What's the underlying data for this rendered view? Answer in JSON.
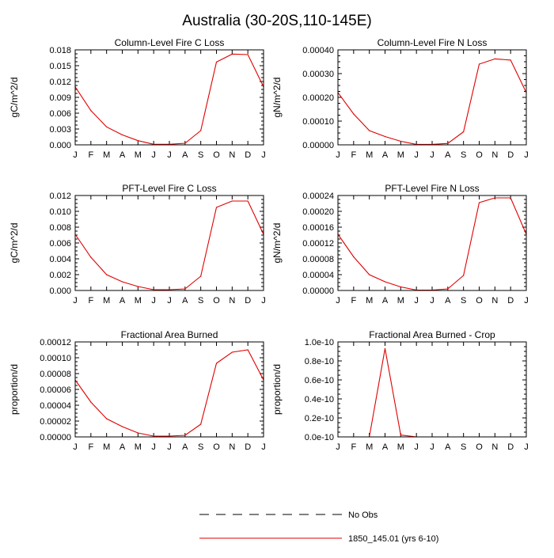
{
  "figure_title": "Australia (30-20S,110-145E)",
  "months": [
    "J",
    "F",
    "M",
    "A",
    "M",
    "J",
    "J",
    "A",
    "S",
    "O",
    "N",
    "D",
    "J"
  ],
  "legend": [
    {
      "label": "No Obs",
      "color": "#000000",
      "dashed": true
    },
    {
      "label": "1850_145.01 (yrs 6-10)",
      "color": "#e00000",
      "dashed": false
    }
  ],
  "chart_data": [
    {
      "type": "line",
      "title": "Column-Level Fire C Loss",
      "ylabel": "gC/m^2/d",
      "ylim": [
        0,
        0.018
      ],
      "yticks": [
        "0.000",
        "0.003",
        "0.006",
        "0.009",
        "0.012",
        "0.015",
        "0.018"
      ],
      "series": [
        {
          "name": "1850_145.01 (yrs 6-10)",
          "color": "#e00000",
          "values": [
            0.011,
            0.0065,
            0.0034,
            0.0019,
            0.0008,
            0.0001,
            0.0001,
            0.0003,
            0.0027,
            0.0157,
            0.0172,
            0.0171,
            0.011
          ]
        }
      ]
    },
    {
      "type": "line",
      "title": "Column-Level Fire N Loss",
      "ylabel": "gN/m^2/d",
      "ylim": [
        0,
        0.0004
      ],
      "yticks": [
        "0.00000",
        "0.00010",
        "0.00020",
        "0.00030",
        "0.00040"
      ],
      "series": [
        {
          "name": "1850_145.01 (yrs 6-10)",
          "color": "#e00000",
          "values": [
            0.00022,
            0.00013,
            6e-05,
            3.5e-05,
            1.5e-05,
            2e-06,
            2e-06,
            6e-06,
            5.5e-05,
            0.00034,
            0.000362,
            0.000357,
            0.00022
          ]
        }
      ]
    },
    {
      "type": "line",
      "title": "PFT-Level Fire C Loss",
      "ylabel": "gC/m^2/d",
      "ylim": [
        0,
        0.012
      ],
      "yticks": [
        "0.000",
        "0.002",
        "0.004",
        "0.006",
        "0.008",
        "0.010",
        "0.012"
      ],
      "series": [
        {
          "name": "1850_145.01 (yrs 6-10)",
          "color": "#e00000",
          "values": [
            0.0071,
            0.0042,
            0.002,
            0.0011,
            0.0005,
            0.0001,
            0.0001,
            0.0002,
            0.0018,
            0.0105,
            0.0113,
            0.0113,
            0.0071
          ]
        }
      ]
    },
    {
      "type": "line",
      "title": "PFT-Level Fire N Loss",
      "ylabel": "gN/m^2/d",
      "ylim": [
        0,
        0.00024
      ],
      "yticks": [
        "0.00000",
        "0.00004",
        "0.00008",
        "0.00012",
        "0.00016",
        "0.00020",
        "0.00024"
      ],
      "series": [
        {
          "name": "1850_145.01 (yrs 6-10)",
          "color": "#e00000",
          "values": [
            0.000142,
            8.5e-05,
            4e-05,
            2.2e-05,
            9e-06,
            1e-06,
            1e-06,
            4e-06,
            3.8e-05,
            0.000222,
            0.000234,
            0.000234,
            0.000142
          ]
        }
      ]
    },
    {
      "type": "line",
      "title": "Fractional Area Burned",
      "ylabel": "proportion/d",
      "ylim": [
        0,
        0.00012
      ],
      "yticks": [
        "0.00000",
        "0.00002",
        "0.00004",
        "0.00006",
        "0.00008",
        "0.00010",
        "0.00012"
      ],
      "series": [
        {
          "name": "1850_145.01 (yrs 6-10)",
          "color": "#e00000",
          "values": [
            7.2e-05,
            4.4e-05,
            2.3e-05,
            1.3e-05,
            5e-06,
            1e-06,
            1e-06,
            2e-06,
            1.6e-05,
            9.3e-05,
            0.000107,
            0.00011,
            7.2e-05
          ]
        }
      ]
    },
    {
      "type": "line",
      "title": "Fractional Area Burned - Crop",
      "ylabel": "proportion/d",
      "ylim": [
        0,
        1e-10
      ],
      "yticks": [
        "0.0e-10",
        "0.2e-10",
        "0.4e-10",
        "0.6e-10",
        "0.8e-10",
        "1.0e-10"
      ],
      "series": [
        {
          "name": "1850_145.01 (yrs 6-10)",
          "color": "#e00000",
          "values": [
            0,
            0,
            0,
            9.3e-11,
            2e-12,
            0,
            0,
            0,
            0,
            0,
            0,
            0,
            0
          ]
        }
      ]
    }
  ]
}
